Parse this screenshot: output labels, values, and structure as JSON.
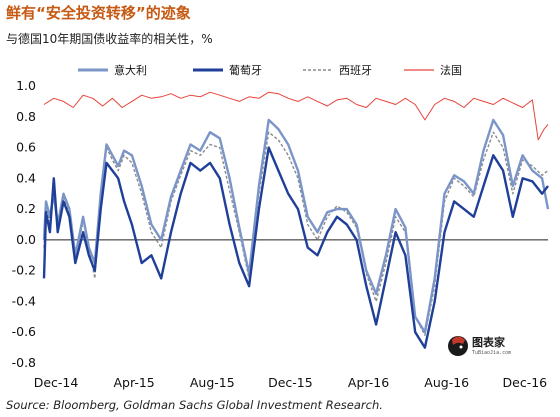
{
  "chart_data": {
    "type": "line",
    "title": "鲜有“安全投资转移”的迹象",
    "subtitle": "与德国10年期国债收益率的相关性，%",
    "x_tick_labels": [
      "Dec-14",
      "Apr-15",
      "Aug-15",
      "Dec-15",
      "Apr-16",
      "Aug-16",
      "Dec-16"
    ],
    "x_range": [
      "2014-12",
      "2017-02"
    ],
    "y_range": [
      -0.8,
      1.0
    ],
    "y_ticks": [
      1.0,
      0.8,
      0.6,
      0.4,
      0.2,
      0.0,
      -0.2,
      -0.4,
      -0.6,
      -0.8
    ],
    "y_tick_labels": [
      "1.0",
      "0.8",
      "0.6",
      "0.4",
      "0.2",
      "0.0",
      "-0.2",
      "-0.4",
      "-0.6",
      "-0.8"
    ],
    "legend_position": "top",
    "grid": false,
    "zero_line": true,
    "series": [
      {
        "name": "意大利",
        "color": "#7b95c8",
        "style": "solid",
        "x": [
          0,
          0.1,
          0.3,
          0.5,
          0.7,
          1.0,
          1.3,
          1.6,
          2.0,
          2.3,
          2.6,
          2.9,
          3.2,
          3.5,
          3.8,
          4.1,
          4.5,
          5.0,
          5.5,
          6.0,
          6.5,
          7.0,
          7.5,
          8.0,
          8.5,
          9.0,
          9.5,
          10.0,
          10.5,
          11.0,
          11.5,
          12.0,
          12.5,
          13.0,
          13.5,
          14.0,
          14.5,
          15.0,
          15.5,
          16.0,
          16.5,
          17.0,
          17.5,
          18.0,
          18.5,
          19.0,
          19.5,
          20.0,
          20.5,
          21.0,
          21.5,
          22.0,
          22.5,
          23.0,
          23.5,
          24.0,
          24.5,
          25.0,
          25.5,
          25.8
        ],
        "values": [
          0.0,
          0.25,
          0.15,
          0.3,
          0.1,
          0.3,
          0.2,
          -0.1,
          0.15,
          -0.05,
          -0.15,
          0.3,
          0.62,
          0.55,
          0.48,
          0.58,
          0.55,
          0.35,
          0.1,
          0.0,
          0.28,
          0.45,
          0.62,
          0.58,
          0.7,
          0.66,
          0.4,
          0.08,
          -0.22,
          0.35,
          0.78,
          0.72,
          0.62,
          0.45,
          0.15,
          0.05,
          0.18,
          0.2,
          0.2,
          0.1,
          -0.2,
          -0.35,
          -0.1,
          0.2,
          0.08,
          -0.5,
          -0.6,
          -0.25,
          0.3,
          0.42,
          0.38,
          0.3,
          0.58,
          0.78,
          0.68,
          0.35,
          0.55,
          0.45,
          0.4,
          0.2
        ]
      },
      {
        "name": "葡萄牙",
        "color": "#1f3f99",
        "style": "solid",
        "x": [
          0,
          0.1,
          0.3,
          0.5,
          0.7,
          1.0,
          1.3,
          1.6,
          2.0,
          2.3,
          2.6,
          2.9,
          3.2,
          3.5,
          3.8,
          4.1,
          4.5,
          5.0,
          5.5,
          6.0,
          6.5,
          7.0,
          7.5,
          8.0,
          8.5,
          9.0,
          9.5,
          10.0,
          10.5,
          11.0,
          11.5,
          12.0,
          12.5,
          13.0,
          13.5,
          14.0,
          14.5,
          15.0,
          15.5,
          16.0,
          16.5,
          17.0,
          17.5,
          18.0,
          18.5,
          19.0,
          19.5,
          20.0,
          20.5,
          21.0,
          21.5,
          22.0,
          22.5,
          23.0,
          23.5,
          24.0,
          24.5,
          25.0,
          25.5,
          25.8
        ],
        "values": [
          -0.25,
          0.18,
          0.05,
          0.4,
          0.05,
          0.25,
          0.15,
          -0.15,
          0.05,
          -0.1,
          -0.2,
          0.2,
          0.5,
          0.45,
          0.4,
          0.25,
          0.1,
          -0.15,
          -0.1,
          -0.25,
          0.05,
          0.3,
          0.5,
          0.45,
          0.5,
          0.4,
          0.1,
          -0.15,
          -0.3,
          0.2,
          0.6,
          0.45,
          0.3,
          0.2,
          -0.05,
          -0.1,
          0.05,
          0.15,
          0.1,
          0.0,
          -0.3,
          -0.55,
          -0.25,
          0.05,
          -0.1,
          -0.6,
          -0.7,
          -0.4,
          0.05,
          0.25,
          0.2,
          0.15,
          0.35,
          0.55,
          0.45,
          0.15,
          0.4,
          0.38,
          0.3,
          0.35
        ]
      },
      {
        "name": "西班牙",
        "color": "#8a8a8a",
        "style": "dashed",
        "x": [
          0,
          0.1,
          0.3,
          0.5,
          0.7,
          1.0,
          1.3,
          1.6,
          2.0,
          2.3,
          2.6,
          2.9,
          3.2,
          3.5,
          3.8,
          4.1,
          4.5,
          5.0,
          5.5,
          6.0,
          6.5,
          7.0,
          7.5,
          8.0,
          8.5,
          9.0,
          9.5,
          10.0,
          10.5,
          11.0,
          11.5,
          12.0,
          12.5,
          13.0,
          13.5,
          14.0,
          14.5,
          15.0,
          15.5,
          16.0,
          16.5,
          17.0,
          17.5,
          18.0,
          18.5,
          19.0,
          19.5,
          20.0,
          20.5,
          21.0,
          21.5,
          22.0,
          22.5,
          23.0,
          23.5,
          24.0,
          24.5,
          25.0,
          25.5,
          25.8
        ],
        "values": [
          -0.05,
          0.2,
          0.12,
          0.32,
          0.1,
          0.28,
          0.18,
          -0.12,
          0.12,
          -0.05,
          -0.25,
          0.25,
          0.6,
          0.52,
          0.45,
          0.55,
          0.5,
          0.3,
          0.05,
          -0.05,
          0.25,
          0.42,
          0.58,
          0.55,
          0.62,
          0.6,
          0.32,
          0.05,
          -0.25,
          0.3,
          0.7,
          0.65,
          0.55,
          0.4,
          0.1,
          0.0,
          0.15,
          0.22,
          0.18,
          0.08,
          -0.22,
          -0.4,
          -0.15,
          0.15,
          0.05,
          -0.5,
          -0.62,
          -0.3,
          0.25,
          0.4,
          0.35,
          0.28,
          0.52,
          0.7,
          0.6,
          0.3,
          0.52,
          0.48,
          0.42,
          0.45
        ]
      },
      {
        "name": "法国",
        "color": "#e8433b",
        "style": "solid",
        "x": [
          0,
          0.5,
          1.0,
          1.5,
          2.0,
          2.5,
          3.0,
          3.5,
          4.0,
          4.5,
          5.0,
          5.5,
          6.0,
          6.5,
          7.0,
          7.5,
          8.0,
          8.5,
          9.0,
          9.5,
          10.0,
          10.5,
          11.0,
          11.5,
          12.0,
          12.5,
          13.0,
          13.5,
          14.0,
          14.5,
          15.0,
          15.5,
          16.0,
          16.5,
          17.0,
          17.5,
          18.0,
          18.5,
          19.0,
          19.5,
          20.0,
          20.5,
          21.0,
          21.5,
          22.0,
          22.5,
          23.0,
          23.5,
          24.0,
          24.5,
          25.0,
          25.3,
          25.6,
          25.8
        ],
        "values": [
          0.88,
          0.92,
          0.9,
          0.86,
          0.94,
          0.92,
          0.87,
          0.92,
          0.86,
          0.9,
          0.94,
          0.92,
          0.93,
          0.95,
          0.92,
          0.94,
          0.93,
          0.96,
          0.94,
          0.92,
          0.9,
          0.93,
          0.92,
          0.96,
          0.95,
          0.92,
          0.9,
          0.93,
          0.9,
          0.87,
          0.91,
          0.92,
          0.88,
          0.86,
          0.92,
          0.9,
          0.88,
          0.92,
          0.88,
          0.78,
          0.88,
          0.92,
          0.9,
          0.86,
          0.92,
          0.9,
          0.88,
          0.92,
          0.89,
          0.86,
          0.91,
          0.65,
          0.72,
          0.75
        ]
      }
    ]
  },
  "source": "Source: Bloomberg, Goldman Sachs Global Investment Research.",
  "logo": {
    "text": "图表家",
    "subtext": "TuBiaoJia.com",
    "icon": "person-head-icon"
  }
}
